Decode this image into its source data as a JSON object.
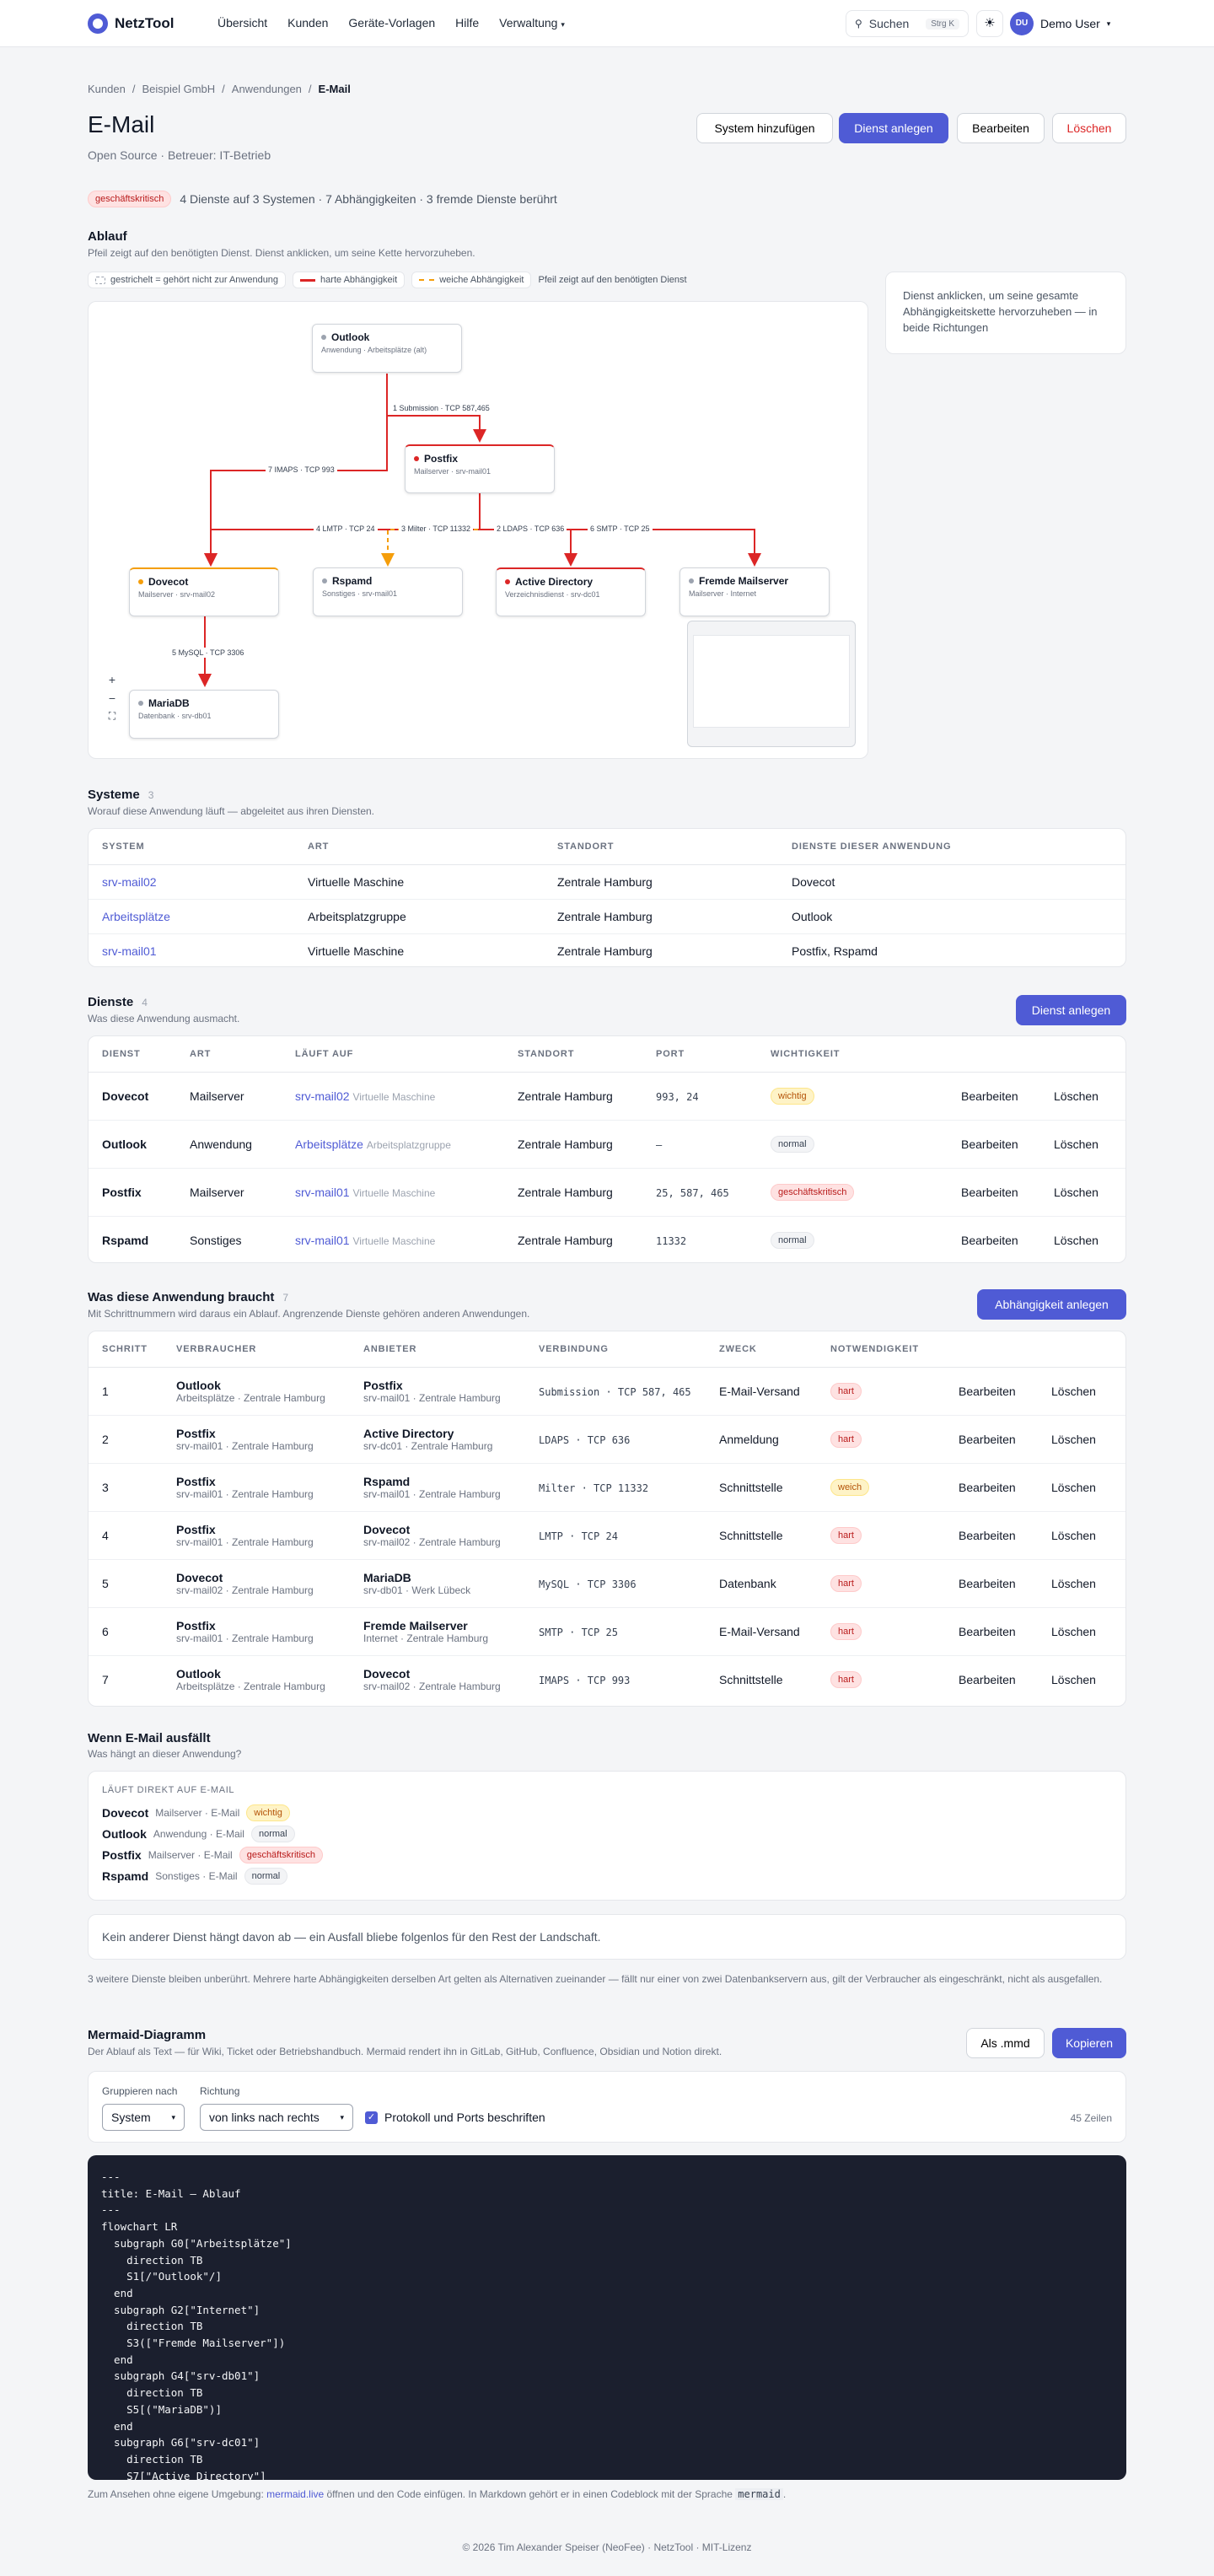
{
  "app": {
    "brand": "NetzTool",
    "nav": [
      "Übersicht",
      "Kunden",
      "Geräte-Vorlagen",
      "Hilfe",
      "Verwaltung"
    ],
    "search": "Suchen",
    "search_kbd": "Strg K",
    "user_initials": "DU",
    "user_name": "Demo User"
  },
  "breadcrumb": [
    "Kunden",
    "Beispiel GmbH",
    "Anwendungen",
    "E-Mail"
  ],
  "page": {
    "title": "E-Mail",
    "subtitle": "Open Source · Betreuer: IT-Betrieb",
    "buttons": [
      "System hinzufügen",
      "Dienst anlegen",
      "Bearbeiten",
      "Löschen"
    ],
    "badge": "geschäftskritisch",
    "summary": "4 Dienste auf 3 Systemen · 7 Abhängigkeiten · 3 fremde Dienste berührt"
  },
  "flow": {
    "title": "Ablauf",
    "desc": "Pfeil zeigt auf den benötigten Dienst. Dienst anklicken, um seine Kette hervorzuheben.",
    "legend": [
      "gestrichelt = gehört nicht zur Anwendung",
      "harte Abhängigkeit",
      "weiche Abhängigkeit",
      "Pfeil zeigt auf den benötigten Dienst"
    ],
    "hint": "Dienst anklicken, um seine gesamte Abhängigkeitskette hervorzuheben — in beide Richtungen",
    "nodes": [
      {
        "title": "Outlook",
        "sub": "Anwendung · Arbeitsplätze (alt)"
      },
      {
        "title": "Postfix",
        "sub": "Mailserver · srv-mail01"
      },
      {
        "title": "Dovecot",
        "sub": "Mailserver · srv-mail02"
      },
      {
        "title": "Rspamd",
        "sub": "Sonstiges · srv-mail01"
      },
      {
        "title": "Active Directory",
        "sub": "Verzeichnisdienst · srv-dc01"
      },
      {
        "title": "Fremde Mailserver",
        "sub": "Mailserver · Internet"
      },
      {
        "title": "MariaDB",
        "sub": "Datenbank · srv-db01"
      }
    ],
    "edges": [
      "1 Submission · TCP 587,465",
      "7 IMAPS · TCP 993",
      "4 LMTP · TCP 24",
      "3 Milter · TCP 11332",
      "2 LDAPS · TCP 636",
      "6 SMTP · TCP 25",
      "5 MySQL · TCP 3306"
    ],
    "zoom": [
      "+",
      "−",
      "⛶"
    ]
  },
  "systems": {
    "title": "Systeme",
    "count": "3",
    "desc": "Worauf diese Anwendung läuft — abgeleitet aus ihren Diensten.",
    "headers": [
      "SYSTEM",
      "ART",
      "STANDORT",
      "DIENSTE DIESER ANWENDUNG"
    ],
    "rows": [
      [
        "srv-mail02",
        "Virtuelle Maschine",
        "Zentrale Hamburg",
        "Dovecot"
      ],
      [
        "Arbeitsplätze",
        "Arbeitsplatzgruppe",
        "Zentrale Hamburg",
        "Outlook"
      ],
      [
        "srv-mail01",
        "Virtuelle Maschine",
        "Zentrale Hamburg",
        "Postfix, Rspamd"
      ]
    ]
  },
  "services": {
    "title": "Dienste",
    "count": "4",
    "desc": "Was diese Anwendung ausmacht.",
    "button": "Dienst anlegen",
    "headers": [
      "DIENST",
      "ART",
      "LÄUFT AUF",
      "STANDORT",
      "PORT",
      "WICHTIGKEIT"
    ],
    "edit": "Bearbeiten",
    "del": "Löschen",
    "rows": [
      {
        "name": "Dovecot",
        "art": "Mailserver",
        "host": "srv-mail02",
        "hostart": "Virtuelle Maschine",
        "loc": "Zentrale Hamburg",
        "port": "993, 24",
        "imp": "wichtig"
      },
      {
        "name": "Outlook",
        "art": "Anwendung",
        "host": "Arbeitsplätze",
        "hostart": "Arbeitsplatzgruppe",
        "loc": "Zentrale Hamburg",
        "port": "—",
        "imp": "normal"
      },
      {
        "name": "Postfix",
        "art": "Mailserver",
        "host": "srv-mail01",
        "hostart": "Virtuelle Maschine",
        "loc": "Zentrale Hamburg",
        "port": "25, 587, 465",
        "imp": "geschäftskritisch"
      },
      {
        "name": "Rspamd",
        "art": "Sonstiges",
        "host": "srv-mail01",
        "hostart": "Virtuelle Maschine",
        "loc": "Zentrale Hamburg",
        "port": "11332",
        "imp": "normal"
      }
    ]
  },
  "deps": {
    "title": "Was diese Anwendung braucht",
    "count": "7",
    "desc": "Mit Schrittnummern wird daraus ein Ablauf. Angrenzende Dienste gehören anderen Anwendungen.",
    "button": "Abhängigkeit anlegen",
    "headers": [
      "SCHRITT",
      "VERBRAUCHER",
      "ANBIETER",
      "VERBINDUNG",
      "ZWECK",
      "NOTWENDIGKEIT"
    ],
    "rows": [
      {
        "n": "1",
        "c": "Outlook",
        "cs": "Arbeitsplätze · Zentrale Hamburg",
        "p": "Postfix",
        "ps": "srv-mail01 · Zentrale Hamburg",
        "v": "Submission · TCP 587, 465",
        "z": "E-Mail-Versand",
        "nw": "hart"
      },
      {
        "n": "2",
        "c": "Postfix",
        "cs": "srv-mail01 · Zentrale Hamburg",
        "p": "Active Directory",
        "ps": "srv-dc01 · Zentrale Hamburg",
        "v": "LDAPS · TCP 636",
        "z": "Anmeldung",
        "nw": "hart"
      },
      {
        "n": "3",
        "c": "Postfix",
        "cs": "srv-mail01 · Zentrale Hamburg",
        "p": "Rspamd",
        "ps": "srv-mail01 · Zentrale Hamburg",
        "v": "Milter · TCP 11332",
        "z": "Schnittstelle",
        "nw": "weich"
      },
      {
        "n": "4",
        "c": "Postfix",
        "cs": "srv-mail01 · Zentrale Hamburg",
        "p": "Dovecot",
        "ps": "srv-mail02 · Zentrale Hamburg",
        "v": "LMTP · TCP 24",
        "z": "Schnittstelle",
        "nw": "hart"
      },
      {
        "n": "5",
        "c": "Dovecot",
        "cs": "srv-mail02 · Zentrale Hamburg",
        "p": "MariaDB",
        "ps": "srv-db01 · Werk Lübeck",
        "v": "MySQL · TCP 3306",
        "z": "Datenbank",
        "nw": "hart"
      },
      {
        "n": "6",
        "c": "Postfix",
        "cs": "srv-mail01 · Zentrale Hamburg",
        "p": "Fremde Mailserver",
        "ps": "Internet · Zentrale Hamburg",
        "v": "SMTP · TCP 25",
        "z": "E-Mail-Versand",
        "nw": "hart"
      },
      {
        "n": "7",
        "c": "Outlook",
        "cs": "Arbeitsplätze · Zentrale Hamburg",
        "p": "Dovecot",
        "ps": "srv-mail02 · Zentrale Hamburg",
        "v": "IMAPS · TCP 993",
        "z": "Schnittstelle",
        "nw": "hart"
      }
    ]
  },
  "impact": {
    "title": "Wenn E-Mail ausfällt",
    "desc": "Was hängt an dieser Anwendung?",
    "label": "LÄUFT DIREKT AUF E-MAIL",
    "rows": [
      {
        "name": "Dovecot",
        "sub": "Mailserver · E-Mail",
        "imp": "wichtig"
      },
      {
        "name": "Outlook",
        "sub": "Anwendung · E-Mail",
        "imp": "normal"
      },
      {
        "name": "Postfix",
        "sub": "Mailserver · E-Mail",
        "imp": "geschäftskritisch"
      },
      {
        "name": "Rspamd",
        "sub": "Sonstiges · E-Mail",
        "imp": "normal"
      }
    ],
    "none": "Kein anderer Dienst hängt davon ab — ein Ausfall bliebe folgenlos für den Rest der Landschaft.",
    "note": "3 weitere Dienste bleiben unberührt. Mehrere harte Abhängigkeiten derselben Art gelten als Alternativen zueinander — fällt nur einer von zwei Datenbankservern aus, gilt der Verbraucher als eingeschränkt, nicht als ausgefallen."
  },
  "mermaid": {
    "title": "Mermaid-Diagramm",
    "desc": "Der Ablauf als Text — für Wiki, Ticket oder Betriebshandbuch. Mermaid rendert ihn in GitLab, GitHub, Confluence, Obsidian und Notion direkt.",
    "btn_mmd": "Als .mmd",
    "btn_copy": "Kopieren",
    "group_label": "Gruppieren nach",
    "group_value": "System",
    "dir_label": "Richtung",
    "dir_value": "von links nach rechts",
    "proto_label": "Protokoll und Ports beschriften",
    "lines_count": "45 Zeilen",
    "code": "---\ntitle: E-Mail — Ablauf\n---\nflowchart LR\n  subgraph G0[\"Arbeitsplätze\"]\n    direction TB\n    S1[/\"Outlook\"/]\n  end\n  subgraph G2[\"Internet\"]\n    direction TB\n    S3([\"Fremde Mailserver\"])\n  end\n  subgraph G4[\"srv-db01\"]\n    direction TB\n    S5[(\"MariaDB\")]\n  end\n  subgraph G6[\"srv-dc01\"]\n    direction TB\n    S7[\"Active Directory\"]",
    "foot_a": "Zum Ansehen ohne eigene Umgebung: ",
    "foot_link": "mermaid.live",
    "foot_b": " öffnen und den Code einfügen. In Markdown gehört er in einen Codeblock mit der Sprache ",
    "foot_code": "mermaid",
    "foot_c": "."
  },
  "footer": "© 2026 Tim Alexander Speiser (NeoFee) · NetzTool · MIT-Lizenz",
  "colors": {
    "accent": "#4f5bd5",
    "hard": "#dc2626",
    "soft": "#f59e0b"
  }
}
